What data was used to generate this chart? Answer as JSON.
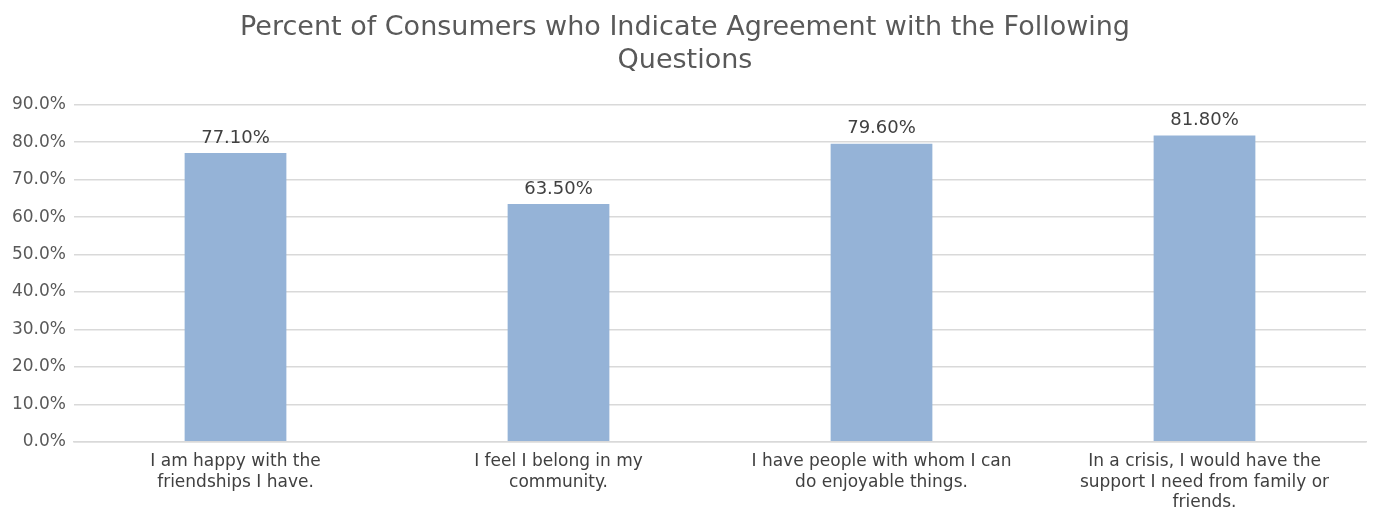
{
  "chart_data": {
    "type": "bar",
    "title": "Percent of Consumers who Indicate Agreement with the Following Questions",
    "categories": [
      "I am happy with the friendships I have.",
      "I feel I belong in my community.",
      "I have people with whom I can do enjoyable things.",
      "In a crisis, I would have the support I need from family or friends."
    ],
    "values": [
      77.1,
      63.5,
      79.6,
      81.8
    ],
    "value_labels": [
      "77.10%",
      "63.50%",
      "79.60%",
      "81.80%"
    ],
    "color": "#95b3d7",
    "ylim": [
      0,
      90
    ],
    "yticks": [
      {
        "value": 0,
        "label": "0.0%"
      },
      {
        "value": 10,
        "label": "10.0%"
      },
      {
        "value": 20,
        "label": "20.0%"
      },
      {
        "value": 30,
        "label": "30.0%"
      },
      {
        "value": 40,
        "label": "40.0%"
      },
      {
        "value": 50,
        "label": "50.0%"
      },
      {
        "value": 60,
        "label": "60.0%"
      },
      {
        "value": 70,
        "label": "70.0%"
      },
      {
        "value": 80,
        "label": "80.0%"
      },
      {
        "value": 90,
        "label": "90.0%"
      }
    ],
    "grid": "y",
    "legend": false
  }
}
